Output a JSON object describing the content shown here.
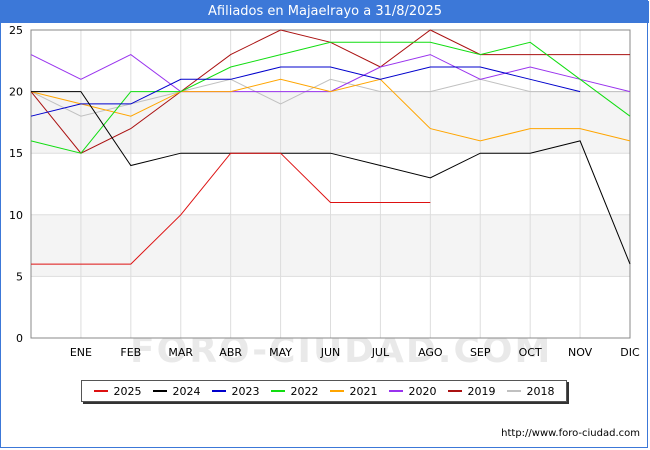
{
  "title": "Afiliados en Majaelrayo a 31/8/2025",
  "watermark": "FORO-CIUDAD.COM",
  "source": "http://www.foro-ciudad.com",
  "chart_data": {
    "type": "line",
    "title": "Afiliados en Majaelrayo a 31/8/2025",
    "x": [
      "",
      "ENE",
      "FEB",
      "MAR",
      "ABR",
      "MAY",
      "JUN",
      "JUL",
      "AGO",
      "SEP",
      "OCT",
      "NOV",
      "DIC"
    ],
    "ylim": [
      0,
      25
    ],
    "yticks": [
      0,
      5,
      10,
      15,
      20,
      25
    ],
    "grid": true,
    "legend_position": "bottom",
    "series": [
      {
        "name": "2025",
        "color": "#dd1111",
        "values": [
          6,
          6,
          6,
          10,
          15,
          15,
          11,
          11,
          11,
          null,
          null,
          null,
          null
        ]
      },
      {
        "name": "2024",
        "color": "#000000",
        "values": [
          20,
          20,
          14,
          15,
          15,
          15,
          15,
          14,
          13,
          15,
          15,
          16,
          6
        ]
      },
      {
        "name": "2023",
        "color": "#0000cc",
        "values": [
          18,
          19,
          19,
          21,
          21,
          22,
          22,
          21,
          22,
          22,
          21,
          20,
          null
        ]
      },
      {
        "name": "2022",
        "color": "#11dd11",
        "values": [
          16,
          15,
          20,
          20,
          22,
          23,
          24,
          24,
          24,
          23,
          24,
          21,
          18
        ]
      },
      {
        "name": "2021",
        "color": "#ffa500",
        "values": [
          20,
          19,
          18,
          20,
          20,
          21,
          20,
          21,
          17,
          16,
          17,
          17,
          16
        ]
      },
      {
        "name": "2020",
        "color": "#9933ee",
        "values": [
          23,
          21,
          23,
          20,
          20,
          20,
          20,
          22,
          23,
          21,
          22,
          21,
          20
        ]
      },
      {
        "name": "2019",
        "color": "#aa1111",
        "values": [
          20,
          15,
          17,
          20,
          23,
          25,
          24,
          22,
          25,
          23,
          23,
          23,
          23
        ]
      },
      {
        "name": "2018",
        "color": "#c0c0c0",
        "values": [
          20,
          18,
          19,
          20,
          21,
          19,
          21,
          20,
          20,
          21,
          20,
          20,
          20
        ]
      }
    ]
  }
}
